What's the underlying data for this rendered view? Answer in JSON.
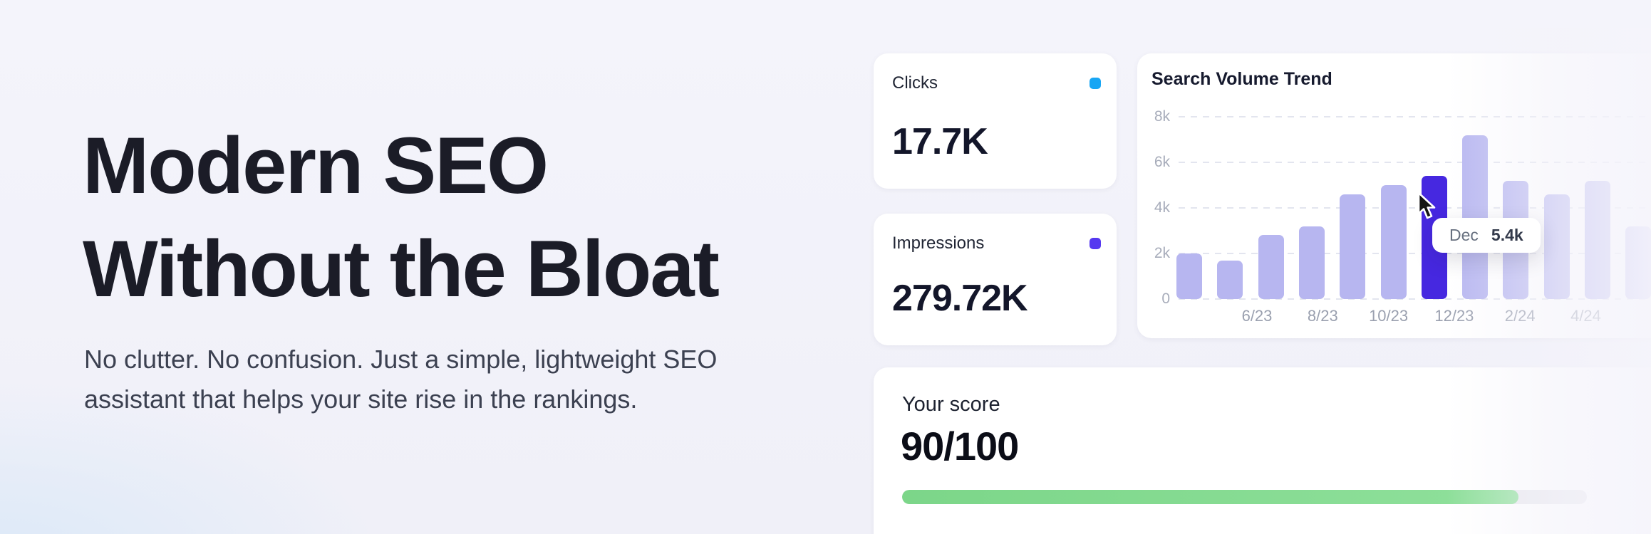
{
  "hero": {
    "title": "Modern SEO\nWithout the Bloat",
    "subtitle": "No clutter. No confusion. Just a simple, lightweight SEO\nassistant that helps your site rise in the rankings."
  },
  "stats": {
    "clicks": {
      "label": "Clicks",
      "value": "17.7K",
      "dot_color": "#18a6f4"
    },
    "impressions": {
      "label": "Impressions",
      "value": "279.72K",
      "dot_color": "#5538f0"
    }
  },
  "chart_data": {
    "type": "bar",
    "title": "Search Volume Trend",
    "categories": [
      "6/23",
      "7/23",
      "8/23",
      "9/23",
      "10/23",
      "11/23",
      "12/23",
      "1/24",
      "2/24",
      "3/24",
      "4/24",
      "5/24"
    ],
    "values": [
      2000,
      1700,
      2800,
      3200,
      4600,
      5000,
      5400,
      7200,
      5200,
      4600,
      5200,
      3200
    ],
    "ylim": [
      0,
      8000
    ],
    "y_ticks": [
      {
        "label": "8k",
        "value": 8000
      },
      {
        "label": "6k",
        "value": 6000
      },
      {
        "label": "4k",
        "value": 4000
      },
      {
        "label": "2k",
        "value": 2000
      },
      {
        "label": "0",
        "value": 0
      }
    ],
    "x_tick_labels": [
      "6/23",
      "8/23",
      "10/23",
      "12/23",
      "2/24",
      "4/24"
    ],
    "grid": "horizontal-dashed",
    "legend": "none",
    "bar_color": "#b7b6f0",
    "highlight_color": "#4628e0",
    "highlight_index": 6,
    "tooltip": {
      "label": "Dec",
      "value": "5.4k"
    }
  },
  "score": {
    "label": "Your score",
    "value": "90/100",
    "percent": 90,
    "bar_color": "#7ed88b",
    "track_color": "#e9e9ee"
  }
}
